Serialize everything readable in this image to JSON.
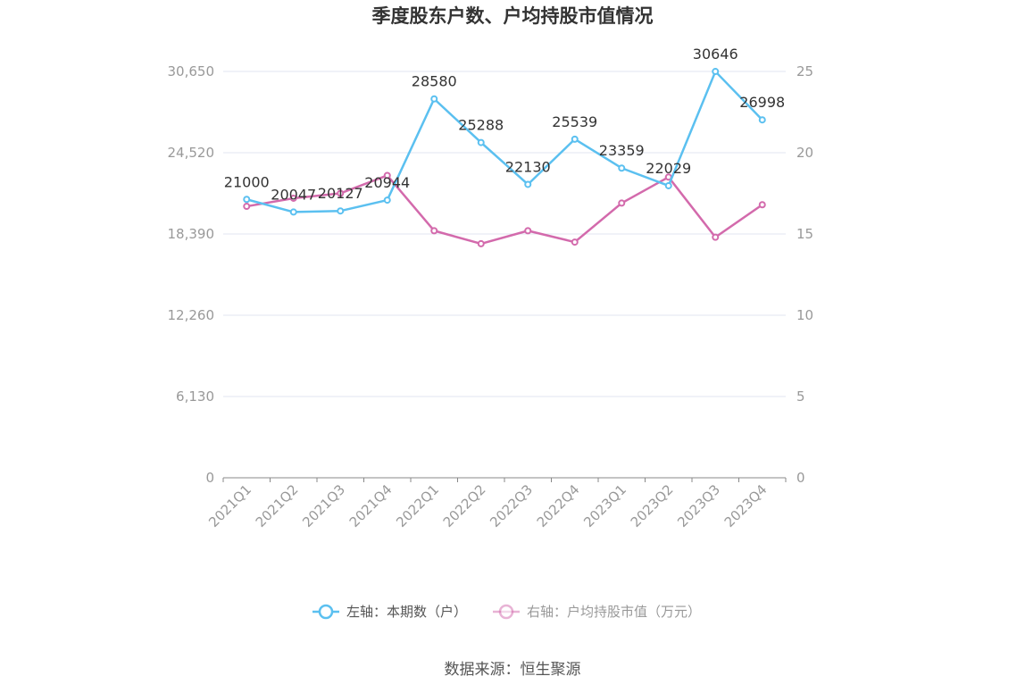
{
  "chart_data": {
    "type": "line",
    "title": "季度股东户数、户均持股市值情况",
    "categories": [
      "2021Q1",
      "2021Q2",
      "2021Q3",
      "2021Q4",
      "2022Q1",
      "2022Q2",
      "2022Q3",
      "2022Q4",
      "2023Q1",
      "2023Q2",
      "2023Q3",
      "2023Q4"
    ],
    "series": [
      {
        "name": "左轴：本期数（户）",
        "axis": "left",
        "color": "#5bc0f0",
        "values": [
          21000,
          20047,
          20127,
          20944,
          28580,
          25288,
          22130,
          25539,
          23359,
          22029,
          30646,
          26998
        ],
        "labels": [
          "21000",
          "20047",
          "20127",
          "20944",
          "28580",
          "25288",
          "22130",
          "25539",
          "23359",
          "22029",
          "30646",
          "26998"
        ]
      },
      {
        "name": "右轴：户均持股市值（万元）",
        "axis": "right",
        "color": "#d36aac",
        "values": [
          16.7,
          17.2,
          17.5,
          18.6,
          15.2,
          14.4,
          15.2,
          14.5,
          16.9,
          18.5,
          14.8,
          16.8
        ]
      }
    ],
    "left_axis": {
      "ylim": [
        0,
        30650
      ],
      "ticks": [
        0,
        6130,
        12260,
        18390,
        24520,
        30650
      ],
      "tick_labels": [
        "0",
        "6,130",
        "12,260",
        "18,390",
        "24,520",
        "30,650"
      ]
    },
    "right_axis": {
      "ylim": [
        0,
        25
      ],
      "ticks": [
        0,
        5,
        10,
        15,
        20,
        25
      ],
      "tick_labels": [
        "0",
        "5",
        "10",
        "15",
        "20",
        "25"
      ]
    },
    "grid": true,
    "legend_position": "bottom-center"
  },
  "source": "数据来源：恒生聚源"
}
